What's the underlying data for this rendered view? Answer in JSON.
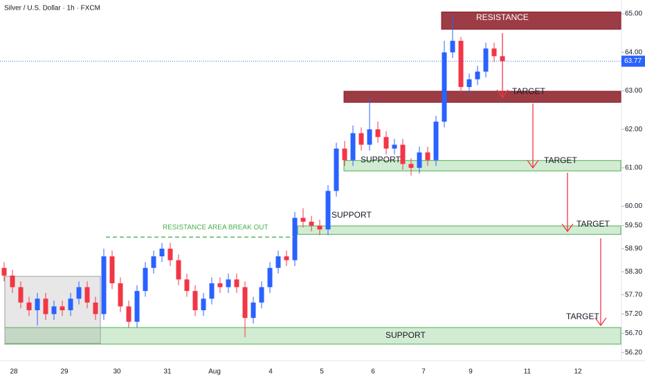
{
  "chart_data": {
    "type": "candlestick",
    "title": "Silver / U.S. Dollar · 1h · FXCM",
    "colors": {
      "up": "#2962ff",
      "down": "#f23645"
    },
    "open": [
      58.4,
      58.2,
      57.9,
      57.5,
      57.3,
      57.6,
      57.2,
      57.4,
      57.3,
      57.6,
      57.9,
      57.5,
      57.2,
      58.7,
      58.0,
      57.4,
      57.0,
      57.8,
      58.4,
      58.7,
      58.9,
      58.6,
      58.1,
      57.8,
      57.3,
      57.6,
      58.0,
      57.9,
      58.1,
      57.9,
      57.1,
      57.5,
      57.9,
      58.4,
      58.7,
      58.6,
      59.7,
      59.6,
      59.5,
      59.4,
      60.4,
      61.5,
      61.2,
      61.9,
      61.6,
      62.0,
      61.8,
      61.5,
      61.6,
      61.1,
      61.0,
      61.4,
      61.2,
      62.2,
      64.0,
      64.3,
      63.1,
      63.3,
      63.5,
      64.1,
      63.9
    ],
    "high": [
      58.55,
      58.35,
      58.05,
      57.65,
      57.75,
      57.75,
      57.55,
      57.55,
      57.75,
      58.05,
      58.05,
      57.65,
      58.9,
      58.85,
      58.15,
      57.55,
      57.95,
      58.55,
      58.85,
      59.05,
      59.05,
      58.75,
      58.25,
      57.95,
      57.75,
      58.15,
      58.15,
      58.25,
      58.25,
      58.05,
      57.65,
      58.05,
      58.55,
      58.85,
      58.85,
      59.85,
      59.95,
      59.75,
      59.65,
      60.55,
      61.65,
      61.7,
      62.1,
      62.05,
      62.8,
      62.2,
      61.95,
      61.75,
      61.75,
      61.25,
      61.55,
      61.55,
      62.35,
      64.3,
      65.0,
      64.4,
      63.45,
      63.65,
      64.25,
      64.25,
      64.0
    ],
    "low": [
      58.05,
      57.75,
      57.35,
      57.15,
      56.9,
      57.05,
      57.05,
      57.15,
      57.15,
      57.45,
      57.35,
      57.05,
      57.05,
      57.85,
      57.25,
      56.85,
      56.85,
      57.65,
      58.25,
      58.55,
      58.45,
      57.95,
      57.65,
      57.15,
      57.15,
      57.45,
      57.75,
      57.75,
      57.75,
      56.6,
      56.95,
      57.35,
      57.75,
      58.25,
      58.45,
      58.45,
      59.45,
      59.35,
      59.25,
      59.25,
      60.25,
      61.05,
      61.05,
      61.45,
      61.45,
      61.65,
      61.35,
      61.35,
      60.95,
      60.8,
      60.85,
      61.05,
      61.05,
      62.05,
      63.85,
      62.95,
      62.9,
      63.15,
      63.35,
      63.75,
      63.65
    ],
    "close": [
      58.2,
      57.9,
      57.5,
      57.3,
      57.6,
      57.2,
      57.4,
      57.3,
      57.6,
      57.9,
      57.5,
      57.2,
      58.7,
      58.0,
      57.4,
      57.0,
      57.8,
      58.4,
      58.7,
      58.9,
      58.6,
      58.1,
      57.8,
      57.3,
      57.6,
      58.0,
      57.9,
      58.1,
      57.9,
      57.1,
      57.5,
      57.9,
      58.4,
      58.7,
      58.6,
      59.7,
      59.6,
      59.5,
      59.4,
      60.4,
      61.5,
      61.2,
      61.9,
      61.6,
      62.0,
      61.8,
      61.5,
      61.6,
      61.1,
      61.0,
      61.4,
      61.2,
      62.2,
      64.0,
      64.3,
      63.1,
      63.3,
      63.5,
      64.1,
      63.9,
      63.77
    ],
    "ylim": [
      55.99,
      65.36
    ],
    "yticks": [
      {
        "value": 65,
        "label": "65.00"
      },
      {
        "value": 64,
        "label": "64.00"
      },
      {
        "value": 63,
        "label": "63.00"
      },
      {
        "value": 62,
        "label": "62.00"
      },
      {
        "value": 61,
        "label": "61.00"
      },
      {
        "value": 60,
        "label": "60.00"
      },
      {
        "value": 59.5,
        "label": "59.50"
      },
      {
        "value": 58.9,
        "label": "58.90"
      },
      {
        "value": 58.3,
        "label": "58.30"
      },
      {
        "value": 57.7,
        "label": "57.70"
      },
      {
        "value": 57.2,
        "label": "57.20"
      },
      {
        "value": 56.7,
        "label": "56.70"
      },
      {
        "value": 56.2,
        "label": "56.20"
      }
    ],
    "current_price": 63.77,
    "xtick_labels": [
      "28",
      "29",
      "30",
      "31",
      "Aug",
      "4",
      "5",
      "6",
      "7",
      "9",
      "11",
      "12"
    ],
    "zones": [
      {
        "label": "RESISTANCE",
        "top": 65.05,
        "bottom": 64.6,
        "color": "#8b1a24"
      },
      {
        "top": 62.99,
        "bottom": 62.7,
        "color": "#8b1a24"
      },
      {
        "label": "SUPPORT",
        "top": 61.19,
        "bottom": 60.92,
        "color": "#4caf50"
      },
      {
        "label": "SUPPORT",
        "top": 59.49,
        "bottom": 59.27,
        "color": "#4caf50"
      },
      {
        "label": "SUPPORT",
        "top": 56.85,
        "bottom": 56.42,
        "color": "#4caf50"
      },
      {
        "top": 58.18,
        "bottom": 56.44,
        "color": "#9e9e9e"
      }
    ],
    "breakout": {
      "label": "RESISTANCE AREA BREAK OUT",
      "value": 59.2,
      "color": "#4caf50"
    },
    "targets": [
      "TARGET",
      "TARGET",
      "TARGET",
      "TARGET"
    ]
  }
}
